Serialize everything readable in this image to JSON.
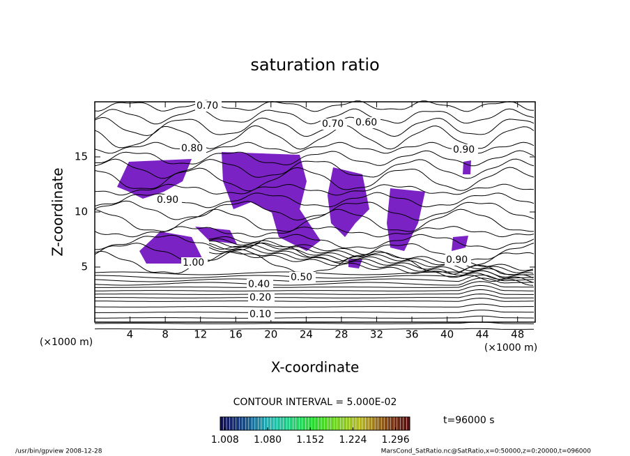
{
  "chart_data": {
    "type": "contour",
    "title": "saturation ratio",
    "x_label": "X-coordinate",
    "y_label": "Z-coordinate",
    "x_unit": "(×1000 m)",
    "xlim": [
      0,
      50
    ],
    "xticks": [
      4,
      8,
      12,
      16,
      20,
      24,
      28,
      32,
      36,
      40,
      44,
      48
    ],
    "ylim": [
      0,
      20
    ],
    "yticks": [
      5,
      10,
      15
    ],
    "fill_color": "#7a22c4",
    "contour_labels": [
      {
        "value": 0.1,
        "label": "0.10"
      },
      {
        "value": 0.2,
        "label": "0.20"
      },
      {
        "value": 0.4,
        "label": "0.40"
      },
      {
        "value": 0.5,
        "label": "0.50"
      },
      {
        "value": 0.7,
        "label": "0.70"
      },
      {
        "value": 0.7,
        "label": "0.70"
      },
      {
        "value": 0.6,
        "label": "0.60"
      },
      {
        "value": 0.8,
        "label": "0.80"
      },
      {
        "value": 0.9,
        "label": "0.90"
      },
      {
        "value": 0.9,
        "label": "0.90"
      },
      {
        "value": 1.0,
        "label": "1.00"
      },
      {
        "value": 0.9,
        "label": "0.90"
      }
    ],
    "contour_interval_text": "CONTOUR INTERVAL = 5.000E-02",
    "time_text": "t=96000 s",
    "colorbar": {
      "clim": [
        1.0,
        1.32
      ],
      "ticks": [
        1.008,
        {
          "value": 1.08,
          "label": "1.080"
        },
        1.152,
        1.224,
        1.296
      ]
    },
    "footer_left": "/usr/bin/gpview  2008-12-28",
    "footer_right": "MarsCond_SatRatio.nc@SatRatio,x=0:50000,z=0:20000,t=096000"
  }
}
